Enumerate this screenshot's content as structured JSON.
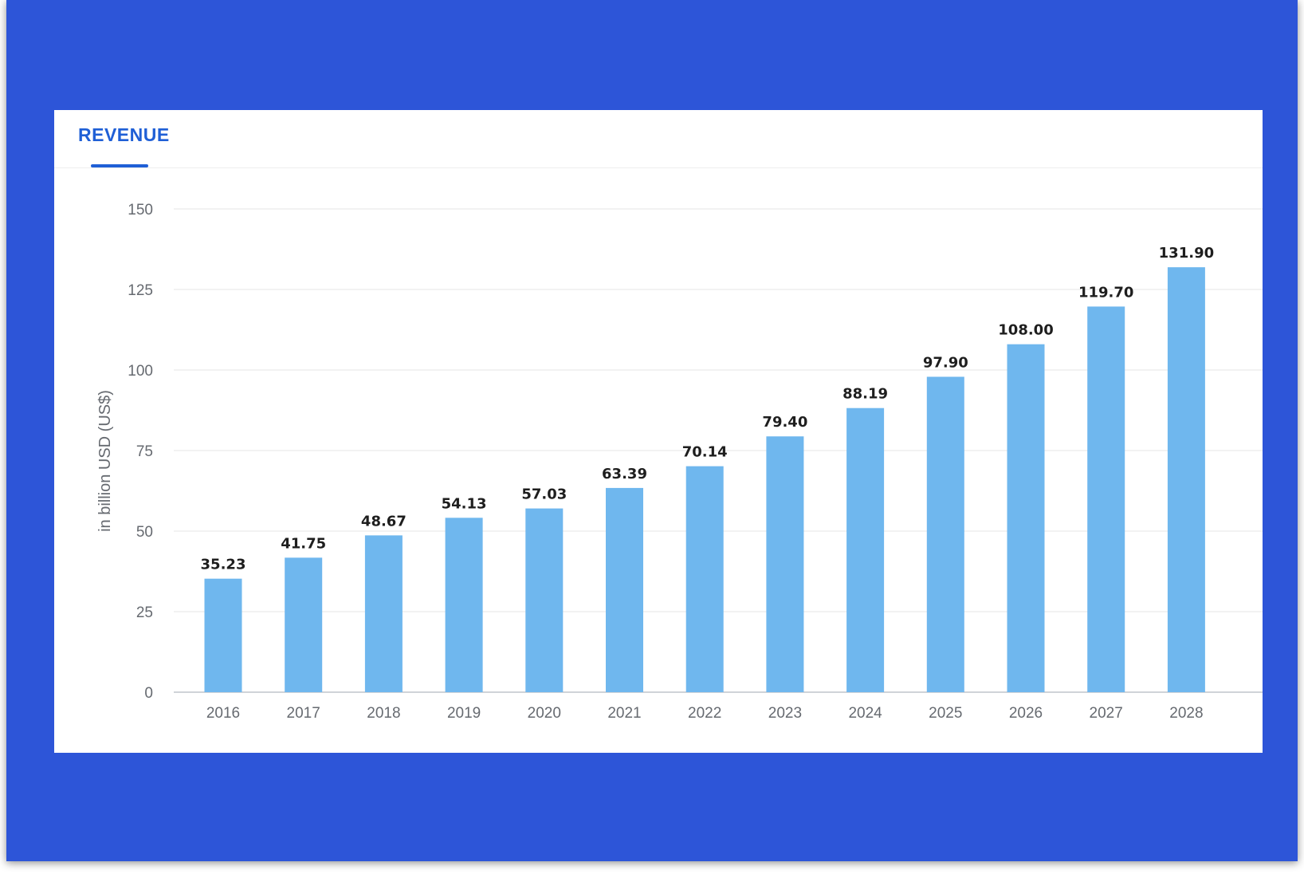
{
  "tab": {
    "label": "REVENUE"
  },
  "colors": {
    "frame": "#2d55d8",
    "accent": "#1f5fd6",
    "bar": "#6fb7ee",
    "grid": "#e6e6e6"
  },
  "chart_data": {
    "type": "bar",
    "title": "",
    "xlabel": "",
    "ylabel": "in billion USD (US$)",
    "categories": [
      "2016",
      "2017",
      "2018",
      "2019",
      "2020",
      "2021",
      "2022",
      "2023",
      "2024",
      "2025",
      "2026",
      "2027",
      "2028"
    ],
    "values": [
      35.23,
      41.75,
      48.67,
      54.13,
      57.03,
      63.39,
      70.14,
      79.4,
      88.19,
      97.9,
      108.0,
      119.7,
      131.9
    ],
    "data_labels": [
      "35.23",
      "41.75",
      "48.67",
      "54.13",
      "57.03",
      "63.39",
      "70.14",
      "79.40",
      "88.19",
      "97.90",
      "108.00",
      "119.70",
      "131.90"
    ],
    "ylim": [
      0,
      150
    ],
    "yticks": [
      0,
      25,
      50,
      75,
      100,
      125,
      150
    ],
    "grid": true,
    "legend": "none"
  }
}
